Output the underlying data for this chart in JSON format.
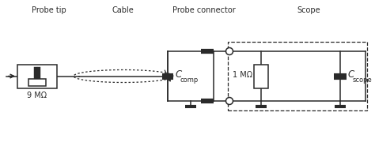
{
  "bg_color": "#ffffff",
  "line_color": "#2a2a2a",
  "labels": {
    "probe_tip": "Probe tip",
    "cable": "Cable",
    "probe_connector": "Probe connector",
    "scope": "Scope",
    "r_probe": "9 MΩ",
    "r_scope": "1 MΩ",
    "c_comp": "C",
    "c_comp_sub": "comp",
    "c_scope": "C",
    "c_scope_sub": "scope"
  },
  "figsize": [
    4.74,
    1.8
  ],
  "dpi": 100
}
